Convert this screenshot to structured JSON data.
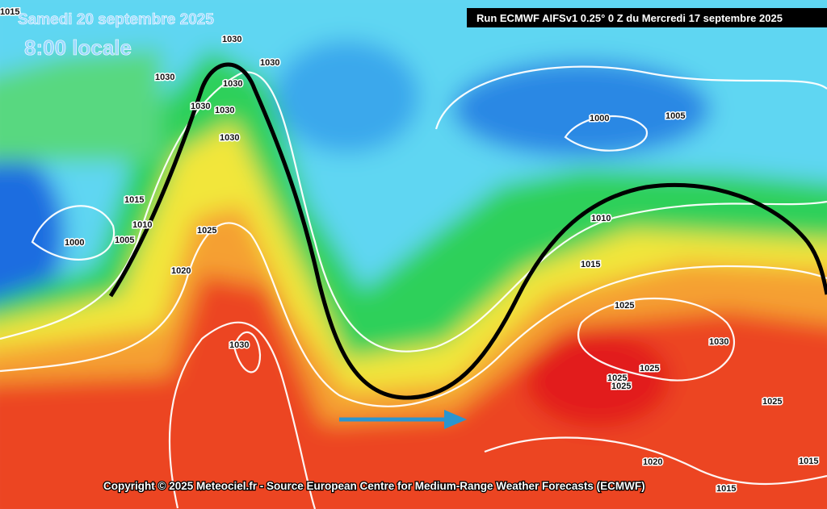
{
  "header": {
    "date": "Samedi 20 septembre 2025",
    "time": "8:00 locale",
    "run": "Run ECMWF AIFSv1 0.25° 0 Z du Mercredi 17 septembre 2025"
  },
  "isobar_labels": [
    "1015",
    "1030",
    "1030",
    "1030",
    "1030",
    "1030",
    "1030",
    "1030",
    "1000",
    "1005",
    "1015",
    "1010",
    "1005",
    "1000",
    "1025",
    "1020",
    "1010",
    "1015",
    "1025",
    "1030",
    "1030",
    "1025",
    "1025",
    "1025",
    "1025",
    "1020",
    "1015",
    "1015"
  ],
  "footer": {
    "copyright": "Copyright © 2025 Meteociel.fr - Source European Centre for Medium-Range Weather Forecasts (ECMWF)"
  }
}
